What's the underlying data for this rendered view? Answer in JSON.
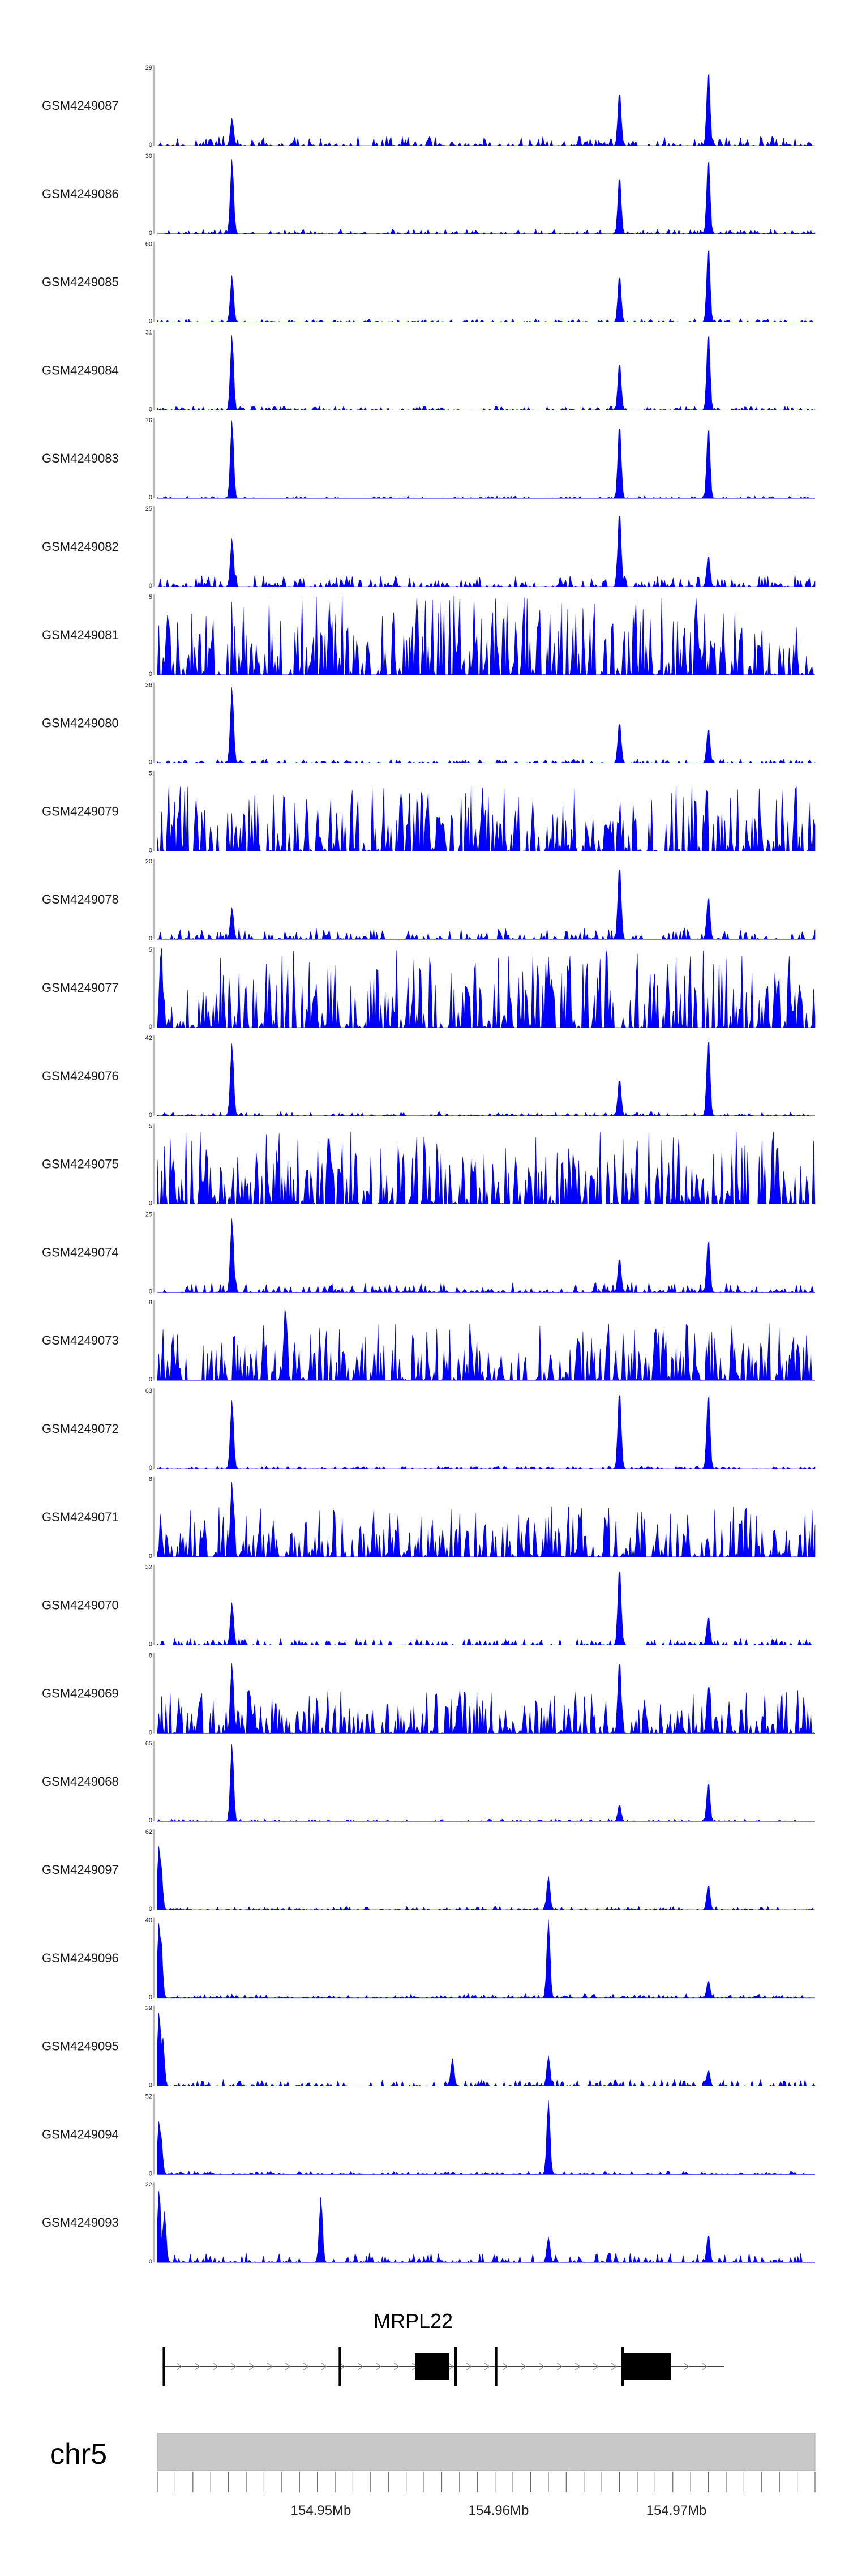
{
  "chart_data": {
    "type": "area",
    "color": "#0000ff",
    "region": {
      "start": 154940800,
      "end": 154977800
    },
    "tracks": [
      {
        "name": "GSM4249087",
        "ymax": "29",
        "ymin": "0",
        "peaks": [
          [
            154945000,
            10
          ],
          [
            154966800,
            20
          ],
          [
            154971800,
            28
          ]
        ],
        "noise": 0.12,
        "seed": 1
      },
      {
        "name": "GSM4249086",
        "ymax": "30",
        "ymin": "0",
        "peaks": [
          [
            154945000,
            28
          ],
          [
            154966800,
            22
          ],
          [
            154971800,
            29
          ]
        ],
        "noise": 0.06,
        "seed": 2
      },
      {
        "name": "GSM4249085",
        "ymax": "60",
        "ymin": "0",
        "peaks": [
          [
            154945000,
            35
          ],
          [
            154966800,
            36
          ],
          [
            154971800,
            58
          ]
        ],
        "noise": 0.04,
        "seed": 3
      },
      {
        "name": "GSM4249084",
        "ymax": "31",
        "ymin": "0",
        "peaks": [
          [
            154945000,
            29
          ],
          [
            154966800,
            19
          ],
          [
            154971800,
            31
          ]
        ],
        "noise": 0.05,
        "seed": 4
      },
      {
        "name": "GSM4249083",
        "ymax": "76",
        "ymin": "0",
        "peaks": [
          [
            154945000,
            74
          ],
          [
            154966800,
            72
          ],
          [
            154971800,
            70
          ]
        ],
        "noise": 0.03,
        "seed": 5
      },
      {
        "name": "GSM4249082",
        "ymax": "25",
        "ymin": "0",
        "peaks": [
          [
            154945000,
            15
          ],
          [
            154966800,
            24
          ],
          [
            154971800,
            10
          ]
        ],
        "noise": 0.15,
        "seed": 6
      },
      {
        "name": "GSM4249081",
        "ymax": "5",
        "ymin": "0",
        "peaks": [],
        "noise": 0.55,
        "seed": 7
      },
      {
        "name": "GSM4249080",
        "ymax": "36",
        "ymin": "0",
        "peaks": [
          [
            154945000,
            34
          ],
          [
            154966800,
            19
          ],
          [
            154971800,
            16
          ]
        ],
        "noise": 0.05,
        "seed": 8
      },
      {
        "name": "GSM4249079",
        "ymax": "5",
        "ymin": "0",
        "peaks": [],
        "noise": 0.45,
        "seed": 9
      },
      {
        "name": "GSM4249078",
        "ymax": "20",
        "ymin": "0",
        "peaks": [
          [
            154945000,
            8
          ],
          [
            154966800,
            19
          ],
          [
            154971800,
            11
          ]
        ],
        "noise": 0.14,
        "seed": 10
      },
      {
        "name": "GSM4249077",
        "ymax": "5",
        "ymin": "0",
        "peaks": [],
        "noise": 0.55,
        "seed": 11
      },
      {
        "name": "GSM4249076",
        "ymax": "42",
        "ymin": "0",
        "peaks": [
          [
            154945000,
            38
          ],
          [
            154966800,
            20
          ],
          [
            154971800,
            42
          ]
        ],
        "noise": 0.05,
        "seed": 12
      },
      {
        "name": "GSM4249075",
        "ymax": "5",
        "ymin": "0",
        "peaks": [],
        "noise": 0.5,
        "seed": 13
      },
      {
        "name": "GSM4249074",
        "ymax": "25",
        "ymin": "0",
        "peaks": [
          [
            154945000,
            23
          ],
          [
            154966800,
            11
          ],
          [
            154971800,
            17
          ]
        ],
        "noise": 0.12,
        "seed": 14
      },
      {
        "name": "GSM4249073",
        "ymax": "8",
        "ymin": "0",
        "peaks": [
          [
            154948000,
            7.5
          ]
        ],
        "noise": 0.4,
        "seed": 15
      },
      {
        "name": "GSM4249072",
        "ymax": "63",
        "ymin": "0",
        "peaks": [
          [
            154945000,
            54
          ],
          [
            154966800,
            63
          ],
          [
            154971800,
            61
          ]
        ],
        "noise": 0.03,
        "seed": 16
      },
      {
        "name": "GSM4249071",
        "ymax": "8",
        "ymin": "0",
        "peaks": [
          [
            154945000,
            7.5
          ]
        ],
        "noise": 0.35,
        "seed": 17
      },
      {
        "name": "GSM4249070",
        "ymax": "32",
        "ymin": "0",
        "peaks": [
          [
            154945000,
            17
          ],
          [
            154966800,
            32
          ],
          [
            154971800,
            12
          ]
        ],
        "noise": 0.08,
        "seed": 18
      },
      {
        "name": "GSM4249069",
        "ymax": "8",
        "ymin": "0",
        "peaks": [
          [
            154945000,
            7
          ],
          [
            154966800,
            7.5
          ],
          [
            154971800,
            5
          ]
        ],
        "noise": 0.3,
        "seed": 19
      },
      {
        "name": "GSM4249068",
        "ymax": "65",
        "ymin": "0",
        "peaks": [
          [
            154945000,
            63
          ],
          [
            154966800,
            14
          ],
          [
            154971800,
            33
          ]
        ],
        "noise": 0.03,
        "seed": 20
      },
      {
        "name": "GSM4249097",
        "ymax": "62",
        "ymin": "0",
        "peaks": [
          [
            154940900,
            50
          ],
          [
            154941000,
            35
          ],
          [
            154962800,
            26
          ],
          [
            154971800,
            20
          ]
        ],
        "noise": 0.04,
        "seed": 21
      },
      {
        "name": "GSM4249096",
        "ymax": "40",
        "ymin": "0",
        "peaks": [
          [
            154940900,
            38
          ],
          [
            154941000,
            30
          ],
          [
            154962800,
            39
          ],
          [
            154971800,
            9
          ]
        ],
        "noise": 0.05,
        "seed": 22
      },
      {
        "name": "GSM4249095",
        "ymax": "29",
        "ymin": "0",
        "peaks": [
          [
            154940900,
            27
          ],
          [
            154941100,
            18
          ],
          [
            154957400,
            10
          ],
          [
            154962800,
            11
          ],
          [
            154971800,
            6
          ]
        ],
        "noise": 0.08,
        "seed": 23
      },
      {
        "name": "GSM4249094",
        "ymax": "52",
        "ymin": "0",
        "peaks": [
          [
            154940900,
            35
          ],
          [
            154941000,
            25
          ],
          [
            154962800,
            48
          ]
        ],
        "noise": 0.04,
        "seed": 24
      },
      {
        "name": "GSM4249093",
        "ymax": "22",
        "ymin": "0",
        "peaks": [
          [
            154940900,
            20
          ],
          [
            154941200,
            14
          ],
          [
            154950000,
            18
          ],
          [
            154962800,
            7
          ],
          [
            154971800,
            8
          ]
        ],
        "noise": 0.12,
        "seed": 25
      }
    ],
    "gene": {
      "name": "MRPL22",
      "span": [
        154941100,
        154972700
      ],
      "exons": [
        [
          154941100,
          154941200,
          "line"
        ],
        [
          154951000,
          154951100,
          "line"
        ],
        [
          154955300,
          154957200,
          "box"
        ],
        [
          154957500,
          154957650,
          "line"
        ],
        [
          154959800,
          154959900,
          "line"
        ],
        [
          154966900,
          154967050,
          "line"
        ],
        [
          154967050,
          154969700,
          "box"
        ]
      ]
    },
    "chromosome": "chr5",
    "axis": {
      "tick_start": 154940800,
      "tick_step": 1000,
      "labels": [
        [
          154950000,
          "154.95Mb"
        ],
        [
          154960000,
          "154.96Mb"
        ],
        [
          154970000,
          "154.97Mb"
        ]
      ]
    }
  }
}
